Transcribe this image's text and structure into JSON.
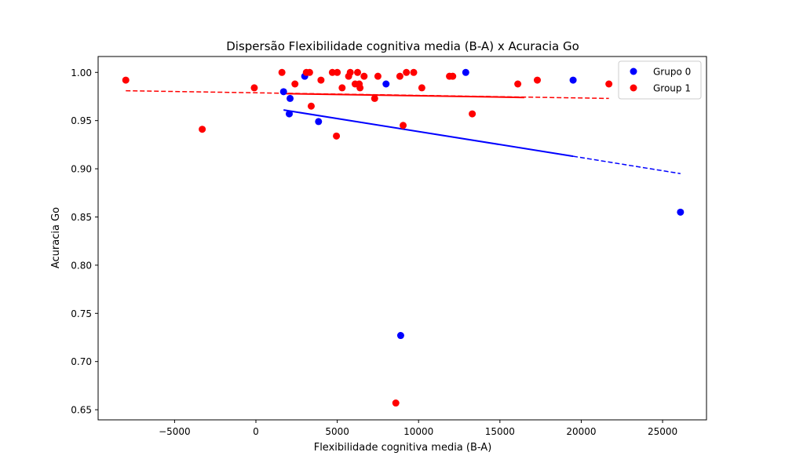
{
  "chart_data": {
    "type": "scatter",
    "title": "Dispersão Flexibilidade cognitiva media (B-A) x Acuracia Go",
    "xlabel": "Flexibilidade cognitiva media (B-A)",
    "ylabel": "Acuracia Go",
    "xlim": [
      -9700,
      27700
    ],
    "ylim": [
      0.6395,
      1.0165
    ],
    "xticks": [
      -5000,
      0,
      5000,
      10000,
      15000,
      20000,
      25000
    ],
    "xtick_labels": [
      "−5000",
      "0",
      "5000",
      "10000",
      "15000",
      "20000",
      "25000"
    ],
    "yticks": [
      0.65,
      0.7,
      0.75,
      0.8,
      0.85,
      0.9,
      0.95,
      1.0
    ],
    "ytick_labels": [
      "0.65",
      "0.70",
      "0.75",
      "0.80",
      "0.85",
      "0.90",
      "0.95",
      "1.00"
    ],
    "grid": false,
    "legend": "top-right",
    "series": [
      {
        "name": "Grupo 0",
        "color": "#0000ff",
        "points": [
          [
            1700,
            0.98
          ],
          [
            2100,
            0.973
          ],
          [
            2050,
            0.957
          ],
          [
            3000,
            0.996
          ],
          [
            3850,
            0.949
          ],
          [
            8000,
            0.988
          ],
          [
            8900,
            0.727
          ],
          [
            12900,
            1.0
          ],
          [
            19500,
            0.992
          ],
          [
            26100,
            0.855
          ]
        ],
        "trend_solid": [
          [
            1700,
            0.961
          ],
          [
            19500,
            0.913
          ]
        ],
        "trend_dashed": [
          [
            19500,
            0.913
          ],
          [
            26100,
            0.895
          ]
        ]
      },
      {
        "name": "Group 1",
        "color": "#ff0000",
        "points": [
          [
            -8000,
            0.992
          ],
          [
            -3300,
            0.941
          ],
          [
            -100,
            0.984
          ],
          [
            1600,
            1.0
          ],
          [
            2400,
            0.988
          ],
          [
            3100,
            1.0
          ],
          [
            3300,
            1.0
          ],
          [
            3400,
            0.965
          ],
          [
            4000,
            0.992
          ],
          [
            4700,
            1.0
          ],
          [
            4950,
            0.934
          ],
          [
            5000,
            1.0
          ],
          [
            5300,
            0.984
          ],
          [
            5700,
            0.996
          ],
          [
            5800,
            1.0
          ],
          [
            6100,
            0.988
          ],
          [
            6250,
            1.0
          ],
          [
            6350,
            0.988
          ],
          [
            6400,
            0.984
          ],
          [
            6650,
            0.996
          ],
          [
            7300,
            0.973
          ],
          [
            7500,
            0.996
          ],
          [
            8600,
            0.657
          ],
          [
            8850,
            0.996
          ],
          [
            9050,
            0.945
          ],
          [
            9250,
            1.0
          ],
          [
            9700,
            1.0
          ],
          [
            10200,
            0.984
          ],
          [
            11900,
            0.996
          ],
          [
            12100,
            0.996
          ],
          [
            13300,
            0.957
          ],
          [
            16100,
            0.988
          ],
          [
            17300,
            0.992
          ],
          [
            21700,
            0.988
          ]
        ],
        "trend_solid": [
          [
            1600,
            0.978
          ],
          [
            16500,
            0.974
          ]
        ],
        "trend_dashed": [
          [
            -8000,
            0.981
          ],
          [
            21700,
            0.973
          ]
        ]
      }
    ]
  }
}
